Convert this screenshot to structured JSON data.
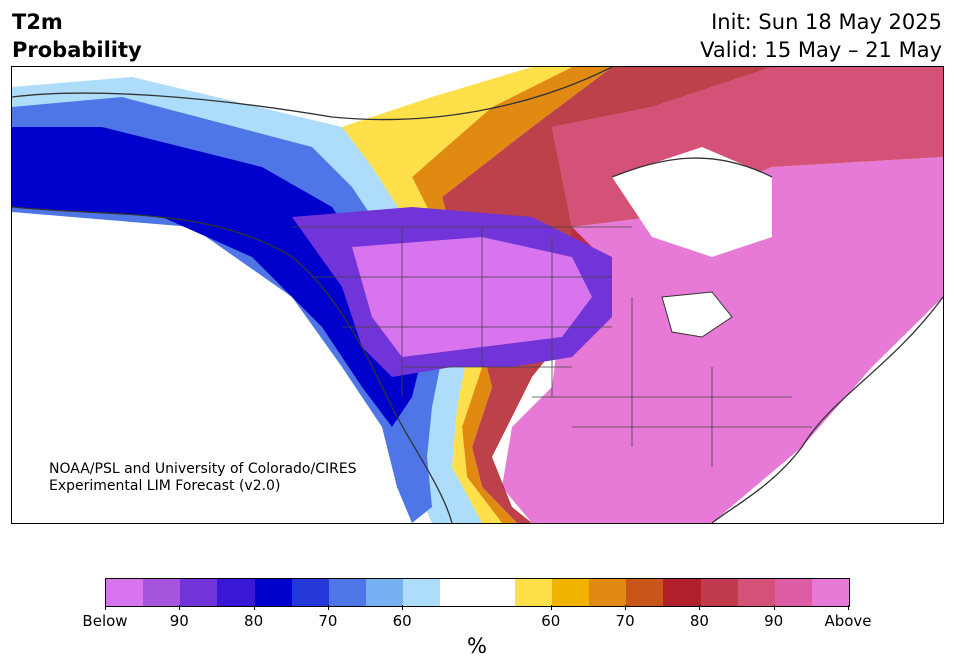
{
  "title": {
    "left_line1": "T2m",
    "left_line2": "Probability",
    "right_line1": "Init: Sun 18 May 2025",
    "right_line2": "Valid: 15 May – 21 May"
  },
  "credit": {
    "line1": "NOAA/PSL and University of Colorado/CIRES",
    "line2": "Experimental LIM Forecast (v2.0)"
  },
  "colorbar": {
    "colors": [
      "#d774ee",
      "#a653dd",
      "#7034d8",
      "#3a17d4",
      "#0000cc",
      "#2437d9",
      "#4f76e6",
      "#77b1f1",
      "#aedcfb",
      "#ffffff",
      "#ffffff",
      "#ffe04a",
      "#f2b200",
      "#e18a12",
      "#c8561a",
      "#b0202a",
      "#c13a4d",
      "#d45177",
      "#dd5da4",
      "#e67ad6"
    ],
    "tick_labels": [
      "Below",
      "90",
      "80",
      "70",
      "60",
      "60",
      "70",
      "80",
      "90",
      "Above"
    ],
    "unit": "%"
  },
  "map_colors": {
    "above_pink": "#e67ad6",
    "below_purple": "#d774ee",
    "blue": "#0000cc",
    "red": "#b0202a",
    "gold": "#f2b200"
  }
}
